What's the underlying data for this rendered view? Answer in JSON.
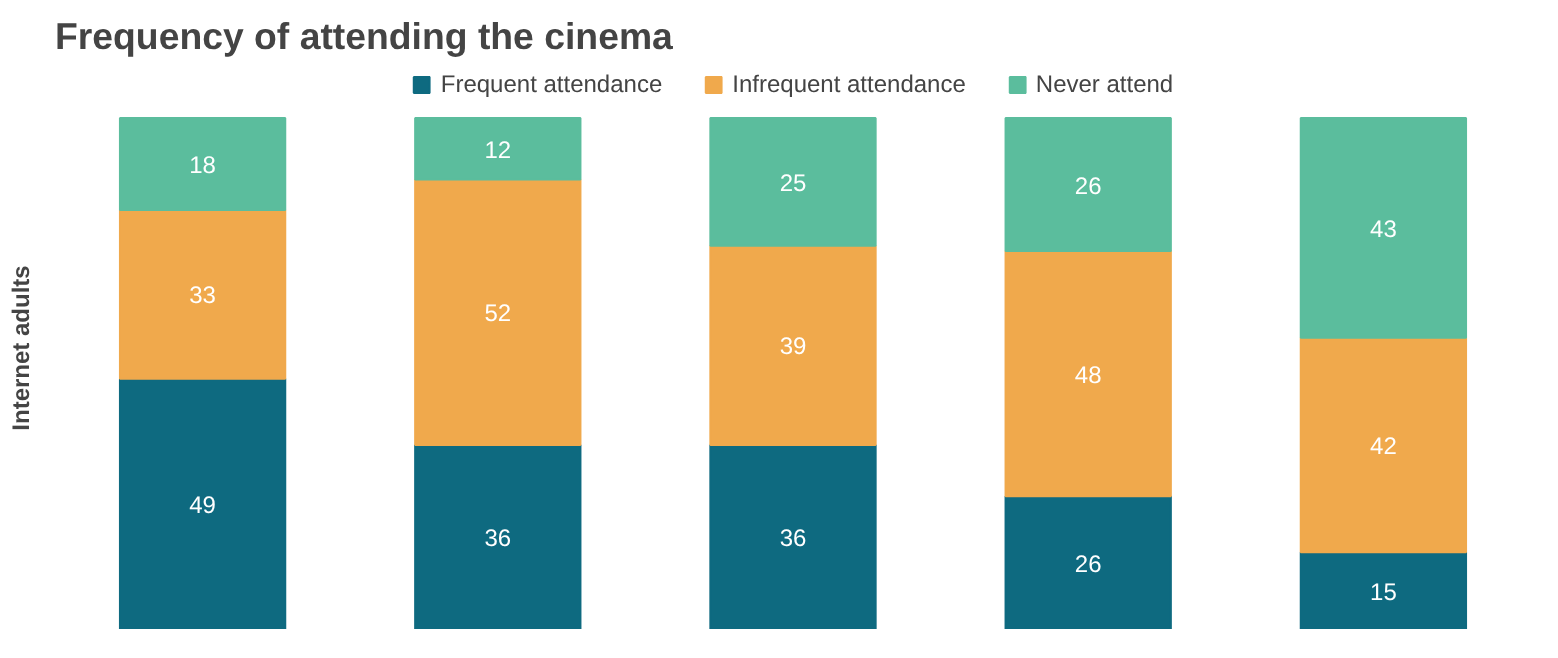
{
  "chart_data": {
    "type": "bar",
    "title": "Frequency of attending the cinema",
    "ylabel": "Internet adults",
    "categories": [
      null,
      null,
      null,
      null,
      null
    ],
    "stacked": true,
    "data_labels": true,
    "legend": "top",
    "ylim": [
      0,
      110
    ],
    "tick_labels": false,
    "series": [
      {
        "name": "Frequent attendance",
        "color": "#0e6a80",
        "values": [
          49,
          36,
          36,
          26,
          15
        ]
      },
      {
        "name": "Infrequent attendance",
        "color": "#f0a94c",
        "values": [
          33,
          52,
          39,
          48,
          42
        ]
      },
      {
        "name": "Never attend",
        "color": "#5bbd9d",
        "values": [
          18,
          12,
          25,
          26,
          43
        ]
      }
    ]
  }
}
